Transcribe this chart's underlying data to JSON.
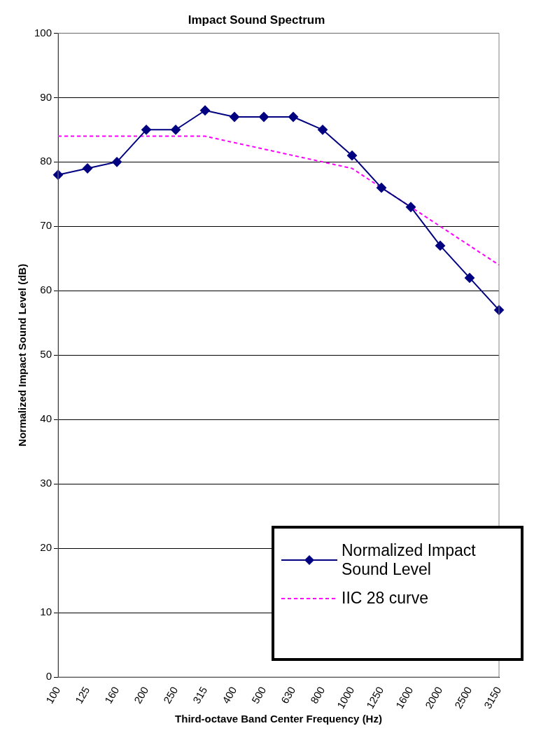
{
  "chart_data": {
    "type": "line",
    "title": "Impact Sound Spectrum",
    "xlabel": "Third-octave Band Center Frequency (Hz)",
    "ylabel": "Normalized Impact Sound Level (dB)",
    "categories": [
      "100",
      "125",
      "160",
      "200",
      "250",
      "315",
      "400",
      "500",
      "630",
      "800",
      "1000",
      "1250",
      "1600",
      "2000",
      "2500",
      "3150"
    ],
    "ylim": [
      0,
      100
    ],
    "yticks": [
      0,
      10,
      20,
      30,
      40,
      50,
      60,
      70,
      80,
      90,
      100
    ],
    "grid": "y",
    "legend": "bottom right",
    "series": [
      {
        "name": "Normalized Impact Sound Level",
        "color": "#000080",
        "marker": "diamond",
        "line_style": "solid",
        "values": [
          78,
          79,
          80,
          85,
          85,
          88,
          87,
          87,
          87,
          85,
          81,
          76,
          73,
          67,
          62,
          57
        ]
      },
      {
        "name": "IIC 28 curve",
        "color": "#ff00ff",
        "marker": "none",
        "line_style": "dashed",
        "values": [
          84,
          84,
          84,
          84,
          84,
          84,
          83,
          82,
          81,
          80,
          79,
          76,
          73,
          70,
          67,
          64
        ]
      }
    ]
  }
}
